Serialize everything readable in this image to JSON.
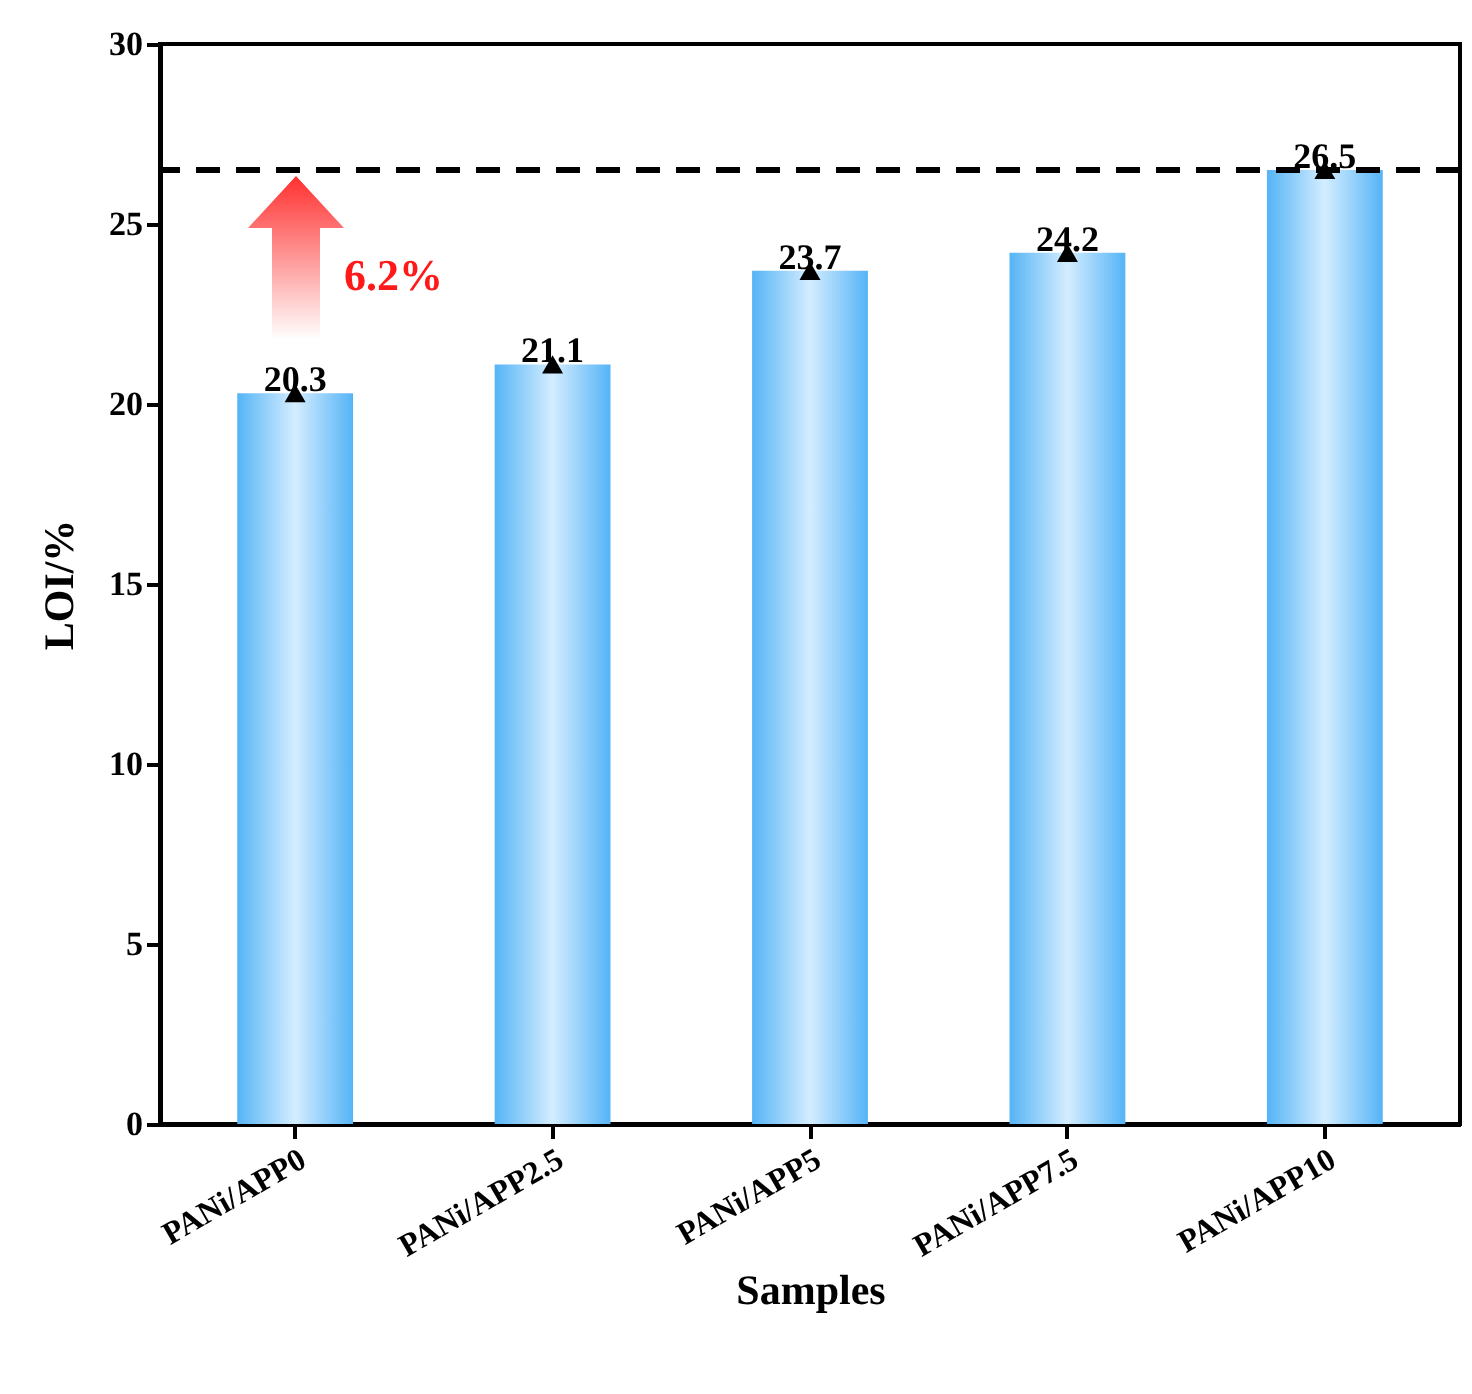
{
  "chart_data": {
    "type": "bar",
    "xlabel": "Samples",
    "ylabel": "LOI/%",
    "categories": [
      "PANi/APP0",
      "PANi/APP2.5",
      "PANi/APP5",
      "PANi/APP7.5",
      "PANi/APP10"
    ],
    "series": [
      {
        "color": "#55b4f6",
        "values": [
          20.3,
          21.1,
          23.7,
          24.2,
          26.5
        ],
        "value_labels": [
          "20.3",
          "21.1",
          "23.7",
          "24.2",
          "26.5"
        ]
      },
      {
        "type": "scatter",
        "color": "#000000",
        "x": [
          "PANi/APP0",
          "PANi/APP2.5",
          "PANi/APP5",
          "PANi/APP7.5",
          "PANi/APP10"
        ],
        "values": [
          20.3,
          21.1,
          23.7,
          24.2,
          26.5
        ]
      }
    ],
    "marker": "triangle",
    "ylim": [
      0,
      30
    ],
    "yticks": [
      0,
      5,
      10,
      15,
      20,
      25,
      30
    ],
    "grid": false,
    "ref_lines": [
      {
        "axis": "y",
        "value": 26.5,
        "color": "#000000",
        "line_style": "dashed"
      }
    ],
    "annotations": [
      "6.2%"
    ]
  }
}
